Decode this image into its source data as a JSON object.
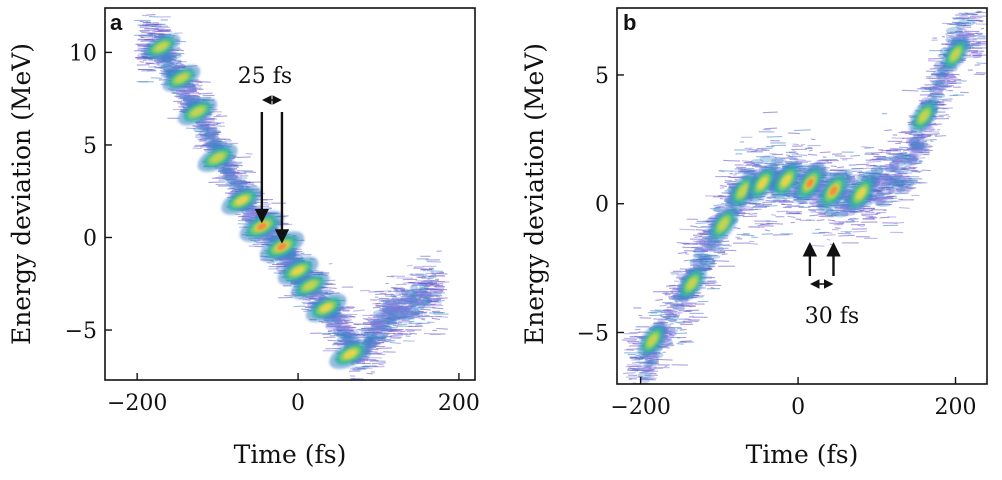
{
  "colors": {
    "background_density": "#6a4fc9",
    "low": "#8d7fe0",
    "mid_low": "#3f83c9",
    "mid": "#2fb6a0",
    "mid_high": "#8fd35a",
    "high": "#f1d54a",
    "peak": "#f08a3a"
  },
  "chart_data": [
    {
      "type": "heatmap",
      "panel_label": "a",
      "xlabel": "Time (fs)",
      "ylabel": "Energy deviation (MeV)",
      "xlim": [
        -240,
        220
      ],
      "ylim": [
        -7.7,
        12.4
      ],
      "xticks": [
        -200,
        0,
        200
      ],
      "xtick_labels": [
        "−200",
        "0",
        "200"
      ],
      "yticks": [
        -5,
        0,
        5,
        10
      ],
      "ytick_labels": [
        "−5",
        "0",
        "5",
        "10"
      ],
      "grid": false,
      "annotation": {
        "text": "25 fs",
        "arrow_from_x": -45,
        "arrow_to_x": -20
      },
      "trend": [
        {
          "t": -175,
          "e": 10.6
        },
        {
          "t": -155,
          "e": 9.0
        },
        {
          "t": -125,
          "e": 7.0
        },
        {
          "t": -95,
          "e": 4.5
        },
        {
          "t": -70,
          "e": 2.2
        },
        {
          "t": -45,
          "e": 0.6
        },
        {
          "t": -20,
          "e": -0.5
        },
        {
          "t": 0,
          "e": -1.8
        },
        {
          "t": 20,
          "e": -3.0
        },
        {
          "t": 40,
          "e": -3.9
        },
        {
          "t": 65,
          "e": -5.6
        },
        {
          "t": 75,
          "e": -6.4
        },
        {
          "t": 110,
          "e": -4.2
        },
        {
          "t": 160,
          "e": -3.0
        }
      ],
      "peaks": [
        {
          "t": -170,
          "e": 10.3,
          "intensity": 0.55
        },
        {
          "t": -145,
          "e": 8.6,
          "intensity": 0.55
        },
        {
          "t": -125,
          "e": 6.8,
          "intensity": 0.65
        },
        {
          "t": -100,
          "e": 4.3,
          "intensity": 0.7
        },
        {
          "t": -70,
          "e": 2.0,
          "intensity": 0.75
        },
        {
          "t": -45,
          "e": 0.6,
          "intensity": 1.0
        },
        {
          "t": -20,
          "e": -0.5,
          "intensity": 1.0
        },
        {
          "t": 0,
          "e": -1.8,
          "intensity": 0.75
        },
        {
          "t": 15,
          "e": -2.6,
          "intensity": 0.6
        },
        {
          "t": 35,
          "e": -3.8,
          "intensity": 0.75
        },
        {
          "t": 65,
          "e": -6.3,
          "intensity": 0.85
        }
      ]
    },
    {
      "type": "heatmap",
      "panel_label": "b",
      "xlabel": "Time (fs)",
      "ylabel": "Energy deviation (MeV)",
      "xlim": [
        -230,
        240
      ],
      "ylim": [
        -7.0,
        7.6
      ],
      "xticks": [
        -200,
        0,
        200
      ],
      "xtick_labels": [
        "−200",
        "0",
        "200"
      ],
      "yticks": [
        -5,
        0,
        5
      ],
      "ytick_labels": [
        "−5",
        "0",
        "5"
      ],
      "grid": false,
      "annotation": {
        "text": "30 fs",
        "arrow_from_x": 15,
        "arrow_to_x": 45
      },
      "trend": [
        {
          "t": -195,
          "e": -6.3
        },
        {
          "t": -160,
          "e": -4.3
        },
        {
          "t": -130,
          "e": -2.6
        },
        {
          "t": -100,
          "e": -0.8
        },
        {
          "t": -75,
          "e": 0.4
        },
        {
          "t": -50,
          "e": 0.9
        },
        {
          "t": -20,
          "e": 1.0
        },
        {
          "t": 10,
          "e": 0.9
        },
        {
          "t": 40,
          "e": 0.5
        },
        {
          "t": 70,
          "e": 0.4
        },
        {
          "t": 110,
          "e": 0.8
        },
        {
          "t": 140,
          "e": 1.5
        },
        {
          "t": 165,
          "e": 3.5
        },
        {
          "t": 190,
          "e": 5.5
        },
        {
          "t": 215,
          "e": 6.9
        }
      ],
      "peaks": [
        {
          "t": -185,
          "e": -5.3,
          "intensity": 0.6
        },
        {
          "t": -135,
          "e": -3.1,
          "intensity": 0.6
        },
        {
          "t": -95,
          "e": -0.8,
          "intensity": 0.7
        },
        {
          "t": -70,
          "e": 0.5,
          "intensity": 0.7
        },
        {
          "t": -45,
          "e": 0.8,
          "intensity": 0.75
        },
        {
          "t": -15,
          "e": 0.9,
          "intensity": 0.8
        },
        {
          "t": 15,
          "e": 0.8,
          "intensity": 0.9
        },
        {
          "t": 45,
          "e": 0.5,
          "intensity": 1.0
        },
        {
          "t": 80,
          "e": 0.4,
          "intensity": 0.8
        },
        {
          "t": 160,
          "e": 3.4,
          "intensity": 0.6
        },
        {
          "t": 200,
          "e": 5.8,
          "intensity": 0.5
        }
      ]
    }
  ]
}
